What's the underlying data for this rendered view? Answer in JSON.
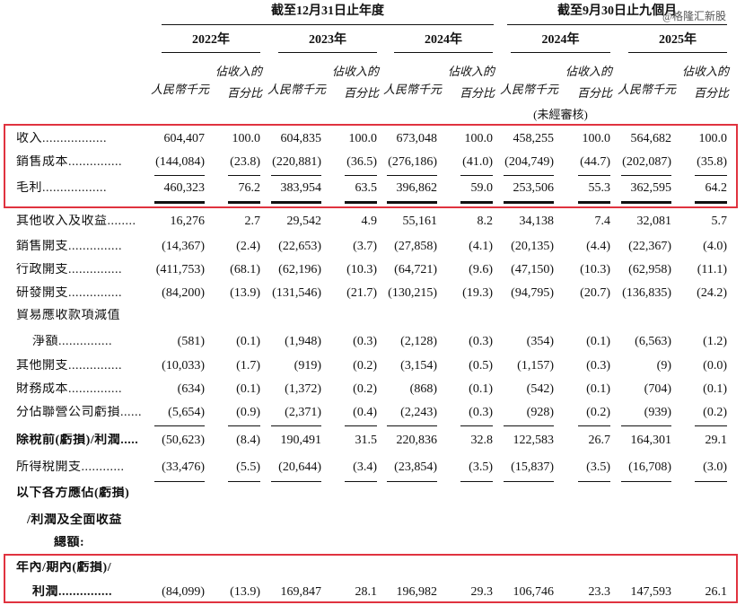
{
  "header": {
    "group_left": "截至12月31日止年度",
    "group_right": "截至9月30日止九個月",
    "watermark": "@格隆汇新股"
  },
  "columns": [
    {
      "year": "2022年",
      "amount": "人民幣千元",
      "pct": "佔收入的百分比"
    },
    {
      "year": "2023年",
      "amount": "人民幣千元",
      "pct": "佔收入的百分比"
    },
    {
      "year": "2024年",
      "amount": "人民幣千元",
      "pct": "佔收入的百分比"
    },
    {
      "year": "2024年",
      "amount": "人民幣千元",
      "pct": "佔收入的百分比",
      "note": "(未經審核)"
    },
    {
      "year": "2025年",
      "amount": "人民幣千元",
      "pct": "佔收入的百分比"
    }
  ],
  "rows": [
    {
      "label": [
        "收入.................."
      ],
      "values": [
        "604,407",
        "100.0",
        "604,835",
        "100.0",
        "673,048",
        "100.0",
        "458,255",
        "100.0",
        "564,682",
        "100.0"
      ]
    },
    {
      "label": [
        "銷售成本..............."
      ],
      "values": [
        "(144,084)",
        "(23.8)",
        "(220,881)",
        "(36.5)",
        "(276,186)",
        "(41.0)",
        "(204,749)",
        "(44.7)",
        "(202,087)",
        "(35.8)"
      ]
    },
    {
      "label": [
        "毛利.................."
      ],
      "values": [
        "460,323",
        "76.2",
        "383,954",
        "63.5",
        "396,862",
        "59.0",
        "253,506",
        "55.3",
        "362,595",
        "64.2"
      ]
    },
    {
      "label": [
        "其他收入及收益........"
      ],
      "values": [
        "16,276",
        "2.7",
        "29,542",
        "4.9",
        "55,161",
        "8.2",
        "34,138",
        "7.4",
        "32,081",
        "5.7"
      ]
    },
    {
      "label": [
        "銷售開支..............."
      ],
      "values": [
        "(14,367)",
        "(2.4)",
        "(22,653)",
        "(3.7)",
        "(27,858)",
        "(4.1)",
        "(20,135)",
        "(4.4)",
        "(22,367)",
        "(4.0)"
      ]
    },
    {
      "label": [
        "行政開支..............."
      ],
      "values": [
        "(411,753)",
        "(68.1)",
        "(62,196)",
        "(10.3)",
        "(64,721)",
        "(9.6)",
        "(47,150)",
        "(10.3)",
        "(62,958)",
        "(11.1)"
      ]
    },
    {
      "label": [
        "研發開支..............."
      ],
      "values": [
        "(84,200)",
        "(13.9)",
        "(131,546)",
        "(21.7)",
        "(130,215)",
        "(19.3)",
        "(94,795)",
        "(20.7)",
        "(136,835)",
        "(24.2)"
      ]
    },
    {
      "label": [
        "貿易應收款項減值",
        "淨額..............."
      ],
      "values": [
        "(581)",
        "(0.1)",
        "(1,948)",
        "(0.3)",
        "(2,128)",
        "(0.3)",
        "(354)",
        "(0.1)",
        "(6,563)",
        "(1.2)"
      ]
    },
    {
      "label": [
        "其他開支..............."
      ],
      "values": [
        "(10,033)",
        "(1.7)",
        "(919)",
        "(0.2)",
        "(3,154)",
        "(0.5)",
        "(1,157)",
        "(0.3)",
        "(9)",
        "(0.0)"
      ]
    },
    {
      "label": [
        "財務成本..............."
      ],
      "values": [
        "(634)",
        "(0.1)",
        "(1,372)",
        "(0.2)",
        "(868)",
        "(0.1)",
        "(542)",
        "(0.1)",
        "(704)",
        "(0.1)"
      ]
    },
    {
      "label": [
        "分佔聯營公司虧損......"
      ],
      "values": [
        "(5,654)",
        "(0.9)",
        "(2,371)",
        "(0.4)",
        "(2,243)",
        "(0.3)",
        "(928)",
        "(0.2)",
        "(939)",
        "(0.2)"
      ]
    },
    {
      "label": [
        "除稅前(虧損)/利潤....."
      ],
      "bold": true,
      "values": [
        "(50,623)",
        "(8.4)",
        "190,491",
        "31.5",
        "220,836",
        "32.8",
        "122,583",
        "26.7",
        "164,301",
        "29.1"
      ]
    },
    {
      "label": [
        "所得稅開支............"
      ],
      "values": [
        "(33,476)",
        "(5.5)",
        "(20,644)",
        "(3.4)",
        "(23,854)",
        "(3.5)",
        "(15,837)",
        "(3.5)",
        "(16,708)",
        "(3.0)"
      ]
    },
    {
      "label": [
        "以下各方應佔(虧損)",
        "/利潤及全面收益",
        "總額:"
      ],
      "bold": true,
      "values": []
    },
    {
      "label": [
        "年內/期內(虧損)/",
        "利潤..............."
      ],
      "bold": true,
      "values": [
        "(84,099)",
        "(13.9)",
        "169,847",
        "28.1",
        "196,982",
        "29.3",
        "106,746",
        "23.3",
        "147,593",
        "26.1"
      ]
    }
  ]
}
